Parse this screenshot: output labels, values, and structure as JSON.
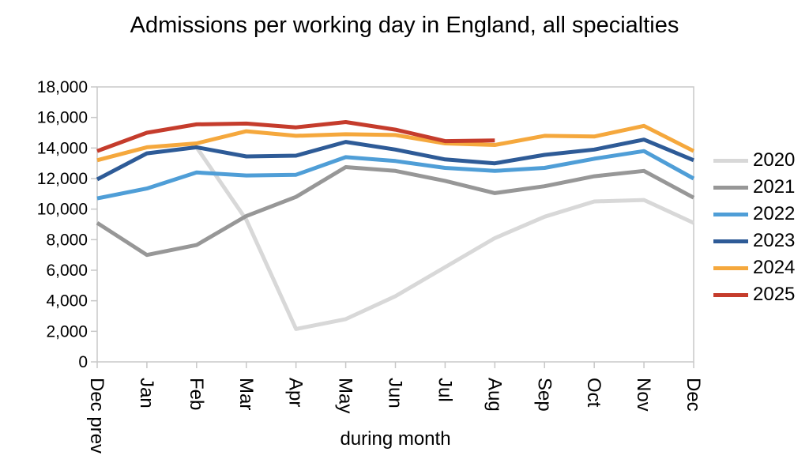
{
  "chart_data": {
    "type": "line",
    "title": "Admissions per working day in England, all specialties",
    "xlabel": "during month",
    "ylabel": "",
    "ylim": [
      0,
      18000
    ],
    "grid": false,
    "legend_position": "right",
    "axis_color": "#c8c8c8",
    "categories": [
      "Dec prev",
      "Jan",
      "Feb",
      "Mar",
      "Apr",
      "May",
      "Jun",
      "Jul",
      "Aug",
      "Sep",
      "Oct",
      "Nov",
      "Dec"
    ],
    "yticks": {
      "values": [
        0,
        2000,
        4000,
        6000,
        8000,
        10000,
        12000,
        14000,
        16000,
        18000
      ],
      "labels": [
        "0",
        "2,000",
        "4,000",
        "6,000",
        "8,000",
        "10,000",
        "12,000",
        "14,000",
        "16,000",
        "18,000"
      ]
    },
    "series": [
      {
        "name": "2020",
        "color": "#d8d8d8",
        "values": [
          null,
          null,
          14050,
          9300,
          2150,
          2800,
          4300,
          6200,
          8100,
          9500,
          10500,
          10600,
          9100
        ]
      },
      {
        "name": "2021",
        "color": "#979797",
        "values": [
          9100,
          7000,
          7650,
          9550,
          10800,
          12750,
          12500,
          11850,
          11050,
          11500,
          12150,
          12500,
          10750
        ]
      },
      {
        "name": "2022",
        "color": "#4f9ed7",
        "values": [
          10700,
          11350,
          12400,
          12200,
          12250,
          13400,
          13150,
          12700,
          12500,
          12700,
          13300,
          13800,
          12000
        ]
      },
      {
        "name": "2023",
        "color": "#2e5b97",
        "values": [
          11950,
          13650,
          14050,
          13450,
          13500,
          14400,
          13900,
          13250,
          13000,
          13550,
          13900,
          14550,
          13200
        ]
      },
      {
        "name": "2024",
        "color": "#f5a83d",
        "values": [
          13200,
          14050,
          14300,
          15100,
          14800,
          14900,
          14850,
          14300,
          14200,
          14800,
          14750,
          15450,
          13800
        ]
      },
      {
        "name": "2025",
        "color": "#c53c2c",
        "values": [
          13800,
          15000,
          15550,
          15600,
          15350,
          15700,
          15200,
          14450,
          14500,
          null,
          null,
          null,
          null
        ]
      }
    ]
  }
}
